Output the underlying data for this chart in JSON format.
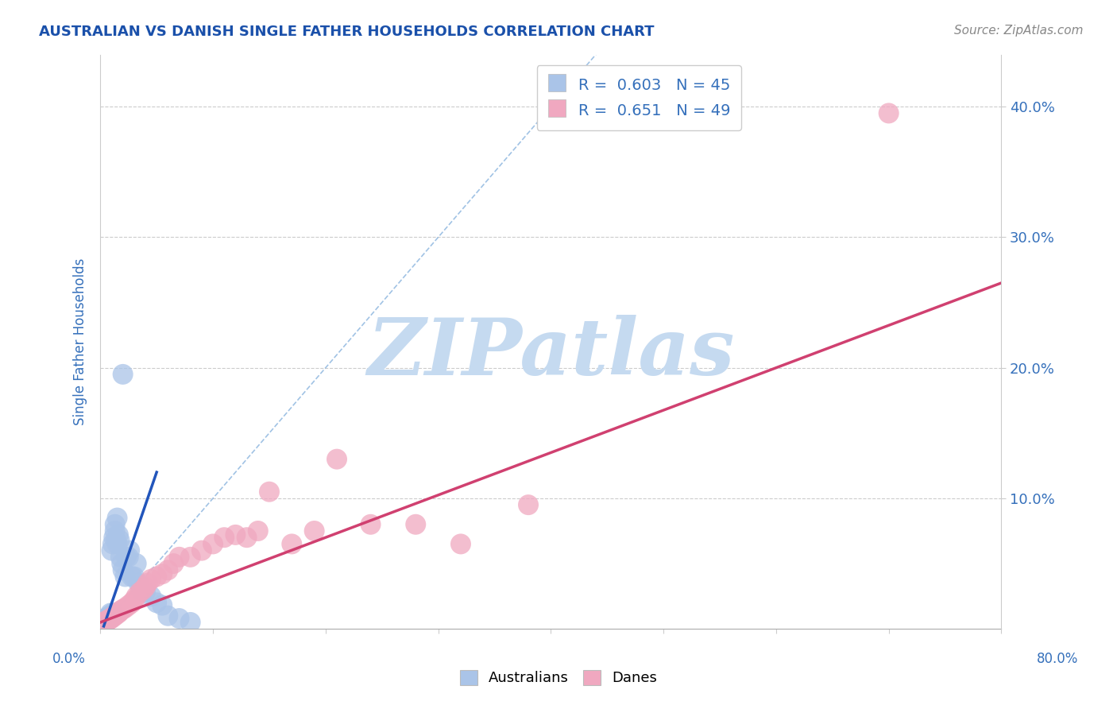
{
  "title": "AUSTRALIAN VS DANISH SINGLE FATHER HOUSEHOLDS CORRELATION CHART",
  "source_text": "Source: ZipAtlas.com",
  "ylabel": "Single Father Households",
  "xlim": [
    0.0,
    0.8
  ],
  "ylim": [
    0.0,
    0.44
  ],
  "ytick_labels": [
    "10.0%",
    "20.0%",
    "30.0%",
    "40.0%"
  ],
  "ytick_values": [
    0.1,
    0.2,
    0.3,
    0.4
  ],
  "aus_R": 0.603,
  "aus_N": 45,
  "dan_R": 0.651,
  "dan_N": 49,
  "aus_color": "#aac4e8",
  "dan_color": "#f0a8c0",
  "aus_line_color": "#2255bb",
  "dan_line_color": "#d04070",
  "diag_color": "#90b8e0",
  "watermark": "ZIPatlas",
  "watermark_color": "#c5daf0",
  "legend_label_aus": "Australians",
  "legend_label_dan": "Danes",
  "title_color": "#1a50aa",
  "source_color": "#888888",
  "axis_label_color": "#3570bb",
  "tick_color": "#3570bb",
  "aus_x": [
    0.002,
    0.003,
    0.004,
    0.005,
    0.005,
    0.006,
    0.006,
    0.007,
    0.007,
    0.008,
    0.008,
    0.009,
    0.009,
    0.01,
    0.01,
    0.011,
    0.011,
    0.012,
    0.013,
    0.013,
    0.014,
    0.015,
    0.015,
    0.016,
    0.017,
    0.018,
    0.019,
    0.02,
    0.022,
    0.023,
    0.025,
    0.026,
    0.028,
    0.03,
    0.032,
    0.034,
    0.036,
    0.04,
    0.045,
    0.05,
    0.055,
    0.06,
    0.07,
    0.08,
    0.02
  ],
  "aus_y": [
    0.005,
    0.005,
    0.005,
    0.005,
    0.008,
    0.006,
    0.007,
    0.007,
    0.009,
    0.008,
    0.01,
    0.009,
    0.012,
    0.01,
    0.06,
    0.012,
    0.065,
    0.07,
    0.075,
    0.08,
    0.068,
    0.065,
    0.085,
    0.072,
    0.068,
    0.055,
    0.05,
    0.045,
    0.04,
    0.055,
    0.055,
    0.06,
    0.04,
    0.04,
    0.05,
    0.035,
    0.03,
    0.028,
    0.025,
    0.02,
    0.018,
    0.01,
    0.008,
    0.005,
    0.195
  ],
  "dan_x": [
    0.002,
    0.003,
    0.004,
    0.005,
    0.006,
    0.007,
    0.008,
    0.009,
    0.01,
    0.011,
    0.012,
    0.013,
    0.014,
    0.015,
    0.016,
    0.017,
    0.018,
    0.02,
    0.022,
    0.025,
    0.028,
    0.03,
    0.032,
    0.035,
    0.038,
    0.04,
    0.042,
    0.045,
    0.05,
    0.055,
    0.06,
    0.065,
    0.07,
    0.08,
    0.09,
    0.1,
    0.11,
    0.12,
    0.13,
    0.14,
    0.15,
    0.17,
    0.19,
    0.21,
    0.24,
    0.28,
    0.32,
    0.38,
    0.7
  ],
  "dan_y": [
    0.005,
    0.005,
    0.005,
    0.006,
    0.006,
    0.007,
    0.007,
    0.008,
    0.008,
    0.009,
    0.01,
    0.01,
    0.011,
    0.012,
    0.012,
    0.013,
    0.014,
    0.015,
    0.016,
    0.018,
    0.02,
    0.022,
    0.025,
    0.028,
    0.03,
    0.032,
    0.035,
    0.038,
    0.04,
    0.042,
    0.045,
    0.05,
    0.055,
    0.055,
    0.06,
    0.065,
    0.07,
    0.072,
    0.07,
    0.075,
    0.105,
    0.065,
    0.075,
    0.13,
    0.08,
    0.08,
    0.065,
    0.095,
    0.395
  ],
  "aus_line_x": [
    0.003,
    0.05
  ],
  "aus_line_y_start": 0.002,
  "aus_line_y_end": 0.12,
  "dan_line_x": [
    0.0,
    0.8
  ],
  "dan_line_y_start": 0.005,
  "dan_line_y_end": 0.265,
  "diag_line_x": [
    0.0,
    0.44
  ],
  "diag_line_y": [
    0.0,
    0.44
  ]
}
